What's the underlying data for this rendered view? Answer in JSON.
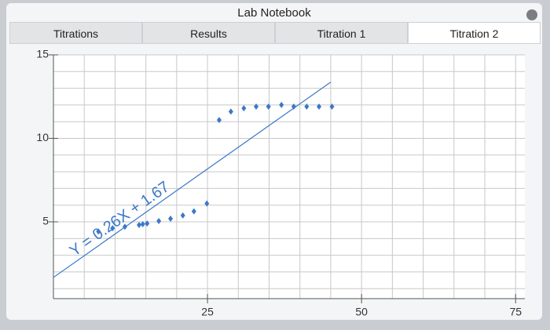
{
  "window": {
    "title": "Lab Notebook"
  },
  "tabs": [
    "Titrations",
    "Results",
    "Titration 1",
    "Titration 2"
  ],
  "active_tab": 3,
  "chart_data": {
    "type": "scatter",
    "color": "#3b78c8",
    "x": [
      7.3,
      9.6,
      11.6,
      13.9,
      14.5,
      15.2,
      17.1,
      19.0,
      21.0,
      22.8,
      24.9,
      26.9,
      28.8,
      30.9,
      32.9,
      34.9,
      37.0,
      39.0,
      41.1,
      43.1,
      45.2
    ],
    "values": [
      4.42,
      4.62,
      4.71,
      4.81,
      4.86,
      4.9,
      5.05,
      5.19,
      5.38,
      5.63,
      6.1,
      11.1,
      11.6,
      11.8,
      11.9,
      11.9,
      12.0,
      11.9,
      11.9,
      11.9,
      11.9
    ],
    "xlim": [
      0,
      76.5
    ],
    "ylim": [
      0.4,
      15
    ],
    "xticks": [
      25,
      50,
      75
    ],
    "yticks": [
      5,
      10,
      15
    ],
    "minor_xticks": [
      0,
      5,
      10,
      15,
      20,
      25,
      30,
      35,
      40,
      45,
      50,
      55,
      60,
      65,
      70,
      75
    ],
    "minor_yticks": [
      1,
      2,
      3,
      4,
      5,
      6,
      7,
      8,
      9,
      10,
      11,
      12,
      13,
      14,
      15
    ],
    "grid": true,
    "trendline": {
      "slope": 0.26,
      "intercept": 1.67,
      "x_range": [
        0,
        45
      ],
      "label": "Y = 0.26X + 1.67"
    }
  }
}
